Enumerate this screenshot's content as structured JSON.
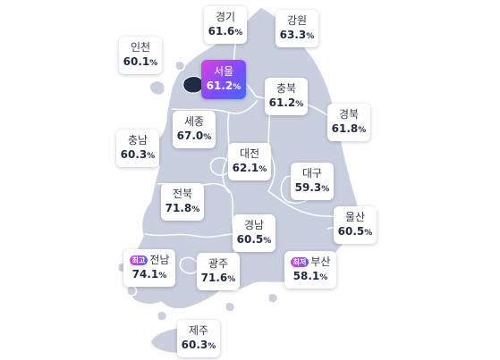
{
  "map": {
    "colors": {
      "land": "#c9cfde",
      "border": "#ffffff",
      "seoul_gradient": [
        "#e03ee0",
        "#7c4dff",
        "#3f6cf5"
      ],
      "badge_gradient": [
        "#e03ee0",
        "#5b5cf6"
      ],
      "text_dark": "#1f2a44"
    },
    "regions": [
      {
        "id": "gyeonggi",
        "name": "경기",
        "rate": "61.6",
        "unit": "%"
      },
      {
        "id": "gangwon",
        "name": "강원",
        "rate": "63.3",
        "unit": "%"
      },
      {
        "id": "incheon",
        "name": "인천",
        "rate": "60.1",
        "unit": "%"
      },
      {
        "id": "seoul",
        "name": "서울",
        "rate": "61.2",
        "unit": "%"
      },
      {
        "id": "chungbuk",
        "name": "충북",
        "rate": "61.2",
        "unit": "%"
      },
      {
        "id": "sejong",
        "name": "세종",
        "rate": "67.0",
        "unit": "%"
      },
      {
        "id": "gyeongbuk",
        "name": "경북",
        "rate": "61.8",
        "unit": "%"
      },
      {
        "id": "chungnam",
        "name": "충남",
        "rate": "60.3",
        "unit": "%"
      },
      {
        "id": "daejeon",
        "name": "대전",
        "rate": "62.1",
        "unit": "%"
      },
      {
        "id": "daegu",
        "name": "대구",
        "rate": "59.3",
        "unit": "%"
      },
      {
        "id": "jeonbuk",
        "name": "전북",
        "rate": "71.8",
        "unit": "%"
      },
      {
        "id": "ulsan",
        "name": "울산",
        "rate": "60.5",
        "unit": "%"
      },
      {
        "id": "gyeongnam",
        "name": "경남",
        "rate": "60.5",
        "unit": "%"
      },
      {
        "id": "jeonnam",
        "name": "전남",
        "rate": "74.1",
        "unit": "%",
        "badge": "최고"
      },
      {
        "id": "gwangju",
        "name": "광주",
        "rate": "71.6",
        "unit": "%"
      },
      {
        "id": "busan",
        "name": "부산",
        "rate": "58.1",
        "unit": "%",
        "badge": "최저"
      },
      {
        "id": "jeju",
        "name": "제주",
        "rate": "60.3",
        "unit": "%"
      }
    ]
  }
}
